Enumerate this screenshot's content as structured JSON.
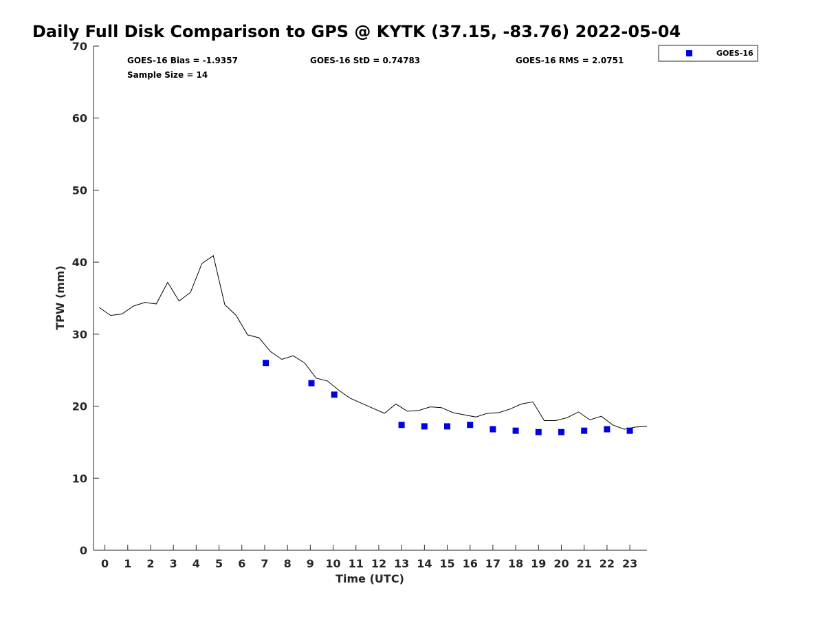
{
  "chart_data": {
    "type": "scatter",
    "title": "Daily Full Disk Comparison to GPS @ KYTK (37.15, -83.76) 2022-05-04",
    "xlabel": "Time (UTC)",
    "ylabel": "TPW (mm)",
    "xlim": [
      -0.5,
      23.75
    ],
    "ylim": [
      0,
      70
    ],
    "x_ticks": [
      0,
      1,
      2,
      3,
      4,
      5,
      6,
      7,
      8,
      9,
      10,
      11,
      12,
      13,
      14,
      15,
      16,
      17,
      18,
      19,
      20,
      21,
      22,
      23
    ],
    "y_ticks": [
      0,
      10,
      20,
      30,
      40,
      50,
      60,
      70
    ],
    "grid": false,
    "legend_position": "top-right",
    "stats": {
      "bias": "GOES-16 Bias = -1.9357",
      "std": "GOES-16 StD = 0.74783",
      "rms": "GOES-16 RMS = 2.0751",
      "sample_size": "Sample Size = 14"
    },
    "series": [
      {
        "name": "",
        "kind": "line",
        "color": "#000000",
        "x": [
          -0.25,
          0.25,
          0.75,
          1.25,
          1.75,
          2.25,
          2.75,
          3.25,
          3.75,
          4.25,
          4.75,
          5.25,
          5.75,
          6.25,
          6.75,
          7.25,
          7.75,
          8.25,
          8.75,
          9.25,
          9.75,
          10.25,
          10.75,
          11.25,
          11.75,
          12.25,
          12.75,
          13.25,
          13.75,
          14.25,
          14.75,
          15.25,
          15.75,
          16.25,
          16.75,
          17.25,
          17.75,
          18.25,
          18.75,
          19.25,
          19.75,
          20.25,
          20.75,
          21.25,
          21.75,
          22.25,
          22.75,
          23.25,
          23.75
        ],
        "values": [
          33.7,
          32.6,
          32.8,
          33.9,
          34.4,
          34.2,
          37.2,
          34.6,
          35.8,
          39.8,
          40.9,
          34.1,
          32.6,
          29.9,
          29.5,
          27.6,
          26.5,
          27.0,
          26.0,
          23.9,
          23.5,
          22.2,
          21.1,
          20.4,
          19.7,
          19.0,
          20.3,
          19.3,
          19.4,
          19.9,
          19.8,
          19.1,
          18.8,
          18.5,
          19.0,
          19.1,
          19.6,
          20.3,
          20.6,
          18.0,
          18.0,
          18.4,
          19.2,
          18.1,
          18.6,
          17.4,
          16.8,
          17.1,
          17.2
        ]
      },
      {
        "name": "GOES-16",
        "kind": "scatter",
        "color": "#0000e6",
        "marker": "square",
        "x": [
          7.05,
          9.05,
          10.05,
          13.0,
          14.0,
          15.0,
          16.0,
          17.0,
          18.0,
          19.0,
          20.0,
          21.0,
          22.0,
          23.0
        ],
        "values": [
          26.0,
          23.2,
          21.6,
          17.4,
          17.2,
          17.2,
          17.4,
          16.8,
          16.6,
          16.4,
          16.4,
          16.6,
          16.8,
          16.6
        ]
      }
    ]
  }
}
